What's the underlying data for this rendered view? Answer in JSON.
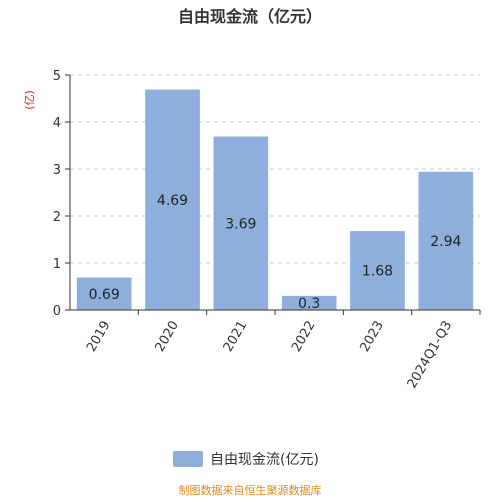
{
  "chart_data": {
    "type": "bar",
    "title": "自由现金流（亿元）",
    "ylabel": "(亿)",
    "categories": [
      "2019",
      "2020",
      "2021",
      "2022",
      "2023",
      "2024Q1-Q3"
    ],
    "series": [
      {
        "name": "自由现金流(亿元)",
        "values": [
          0.69,
          4.69,
          3.69,
          0.3,
          1.68,
          2.94
        ]
      }
    ],
    "data_labels": [
      "0.69",
      "4.69",
      "3.69",
      "0.3",
      "1.68",
      "2.94"
    ],
    "ylim": [
      0,
      5
    ],
    "yticks": [
      0,
      1,
      2,
      3,
      4,
      5
    ],
    "grid": true,
    "legend_position": "bottom",
    "bar_color": "#8eaedb"
  },
  "source_note": "制图数据来自恒生聚源数据库"
}
